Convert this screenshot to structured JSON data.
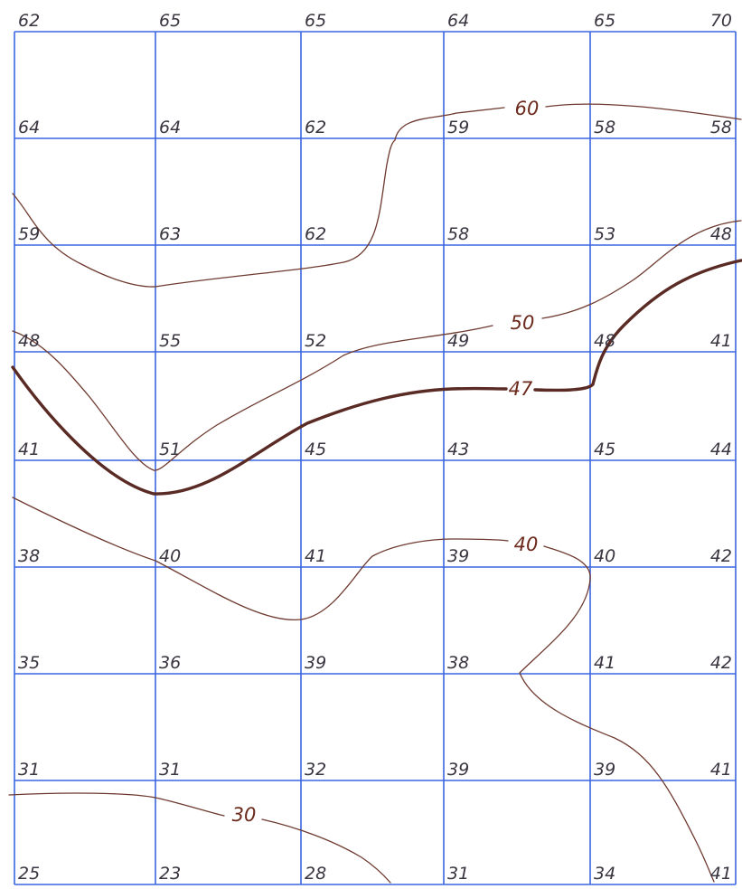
{
  "grid_values": [
    [
      "62",
      "65",
      "65",
      "64",
      "65",
      "70"
    ],
    [
      "64",
      "64",
      "62",
      "59",
      "58",
      "58"
    ],
    [
      "59",
      "63",
      "62",
      "58",
      "53",
      "48"
    ],
    [
      "48",
      "55",
      "52",
      "49",
      "48",
      "41"
    ],
    [
      "41",
      "51",
      "45",
      "43",
      "45",
      "44"
    ],
    [
      "38",
      "40",
      "41",
      "39",
      "40",
      "42"
    ],
    [
      "35",
      "36",
      "39",
      "38",
      "41",
      "42"
    ],
    [
      "31",
      "31",
      "32",
      "39",
      "39",
      "41"
    ],
    [
      "25",
      "23",
      "28",
      "31",
      "34",
      "41"
    ]
  ],
  "contours": [
    {
      "id": "60",
      "label": "60",
      "bold": false
    },
    {
      "id": "50",
      "label": "50",
      "bold": false
    },
    {
      "id": "47",
      "label": "47",
      "bold": true
    },
    {
      "id": "40",
      "label": "40",
      "bold": false
    },
    {
      "id": "30",
      "label": "30",
      "bold": false
    }
  ],
  "colors": {
    "grid": "#3a66e0",
    "contour": "#6e3a30",
    "contour_bold": "#5a2a24",
    "text": "#3a3540"
  }
}
